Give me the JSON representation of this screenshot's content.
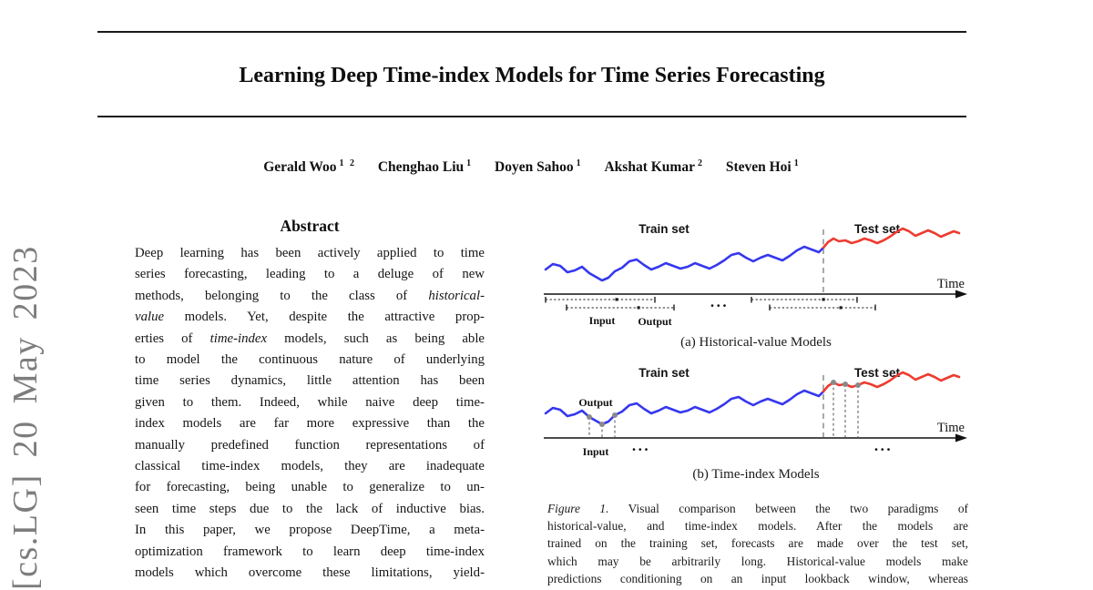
{
  "arxiv_banner": "[cs.LG]  20 May 2023",
  "title": "Learning Deep Time-index Models for Time Series Forecasting",
  "authors": [
    {
      "name": "Gerald Woo",
      "sup": "1 2"
    },
    {
      "name": "Chenghao Liu",
      "sup": "1"
    },
    {
      "name": "Doyen Sahoo",
      "sup": "1"
    },
    {
      "name": "Akshat Kumar",
      "sup": "2"
    },
    {
      "name": "Steven Hoi",
      "sup": "1"
    }
  ],
  "abstract": {
    "heading": "Abstract",
    "lines": [
      "Deep learning has been actively applied to time",
      "series forecasting, leading to a deluge of new",
      "methods, belonging to the class of *historical-*",
      "*value* models.  Yet, despite the attractive prop-",
      "erties of *time-index* models, such as being able",
      "to model the continuous nature of underlying",
      "time series dynamics, little attention has been",
      "given to them.  Indeed, while naive deep time-",
      "index models are far more expressive than the",
      "manually predefined function representations of",
      "classical time-index models, they are inadequate",
      "for forecasting, being unable to generalize to un-",
      "seen time steps due to the lack of inductive bias.",
      "In this paper, we propose DeepTime, a meta-",
      "optimization framework to learn deep time-index",
      "models which overcome these limitations, yield-"
    ]
  },
  "figure": {
    "train_label": "Train set",
    "test_label": "Test set",
    "time_label": "Time",
    "input_label": "Input",
    "output_label": "Output",
    "ellipsis": "...",
    "caption_a": "(a) Historical-value Models",
    "caption_b": "(b) Time-index Models",
    "colors": {
      "train": "#3538ee",
      "test": "#ee3b30",
      "divider": "#949494",
      "sample_marker": "#8a8a8a"
    }
  },
  "figure_caption": {
    "lines": [
      "*Figure 1.* Visual comparison between the two paradigms of",
      "historical-value, and time-index models.  After the models are",
      "trained on the training set, forecasts are made over the test set,",
      "which may be arbitrarily long.  Historical-value models make",
      "predictions conditioning on an input lookback window, whereas"
    ]
  }
}
